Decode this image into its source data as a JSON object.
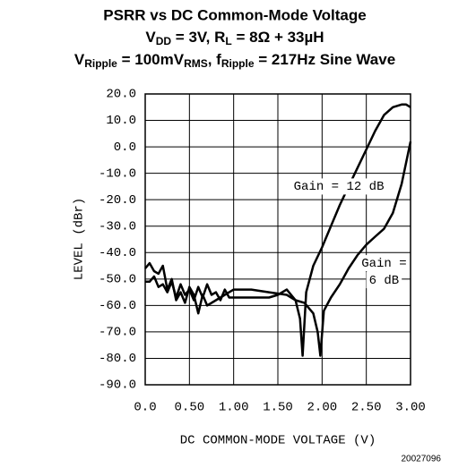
{
  "chart_data": {
    "type": "line",
    "title": "PSRR vs DC Common-Mode Voltage",
    "subtitle": [
      [
        "V",
        "DD",
        " = 3V, R",
        "L",
        " = 8Ω + 33µH"
      ],
      [
        "V",
        "Ripple",
        " = 100mV",
        "RMS",
        ", f",
        "Ripple",
        " = 217Hz Sine Wave"
      ]
    ],
    "x_label": "DC COMMON-MODE VOLTAGE (V)",
    "y_label": "LEVEL (dBr)",
    "footnote": "20027096",
    "xlim": [
      0,
      3
    ],
    "ylim": [
      -90,
      20
    ],
    "xticks": [
      {
        "value": 0,
        "label": "0.0"
      },
      {
        "value": 0.5,
        "label": "0.50"
      },
      {
        "value": 1,
        "label": "1.00"
      },
      {
        "value": 1.5,
        "label": "1.50"
      },
      {
        "value": 2,
        "label": "2.00"
      },
      {
        "value": 2.5,
        "label": "2.50"
      },
      {
        "value": 3,
        "label": "3.00"
      }
    ],
    "yticks": [
      {
        "value": 20,
        "label": "20.0"
      },
      {
        "value": 10,
        "label": "10.0"
      },
      {
        "value": 0,
        "label": "0.0"
      },
      {
        "value": -10,
        "label": "-10.0"
      },
      {
        "value": -20,
        "label": "-20.0"
      },
      {
        "value": -30,
        "label": "-30.0"
      },
      {
        "value": -40,
        "label": "-40.0"
      },
      {
        "value": -50,
        "label": "-50.0"
      },
      {
        "value": -60,
        "label": "-60.0"
      },
      {
        "value": -70,
        "label": "-70.0"
      },
      {
        "value": -80,
        "label": "-80.0"
      },
      {
        "value": -90,
        "label": "-90.0"
      }
    ],
    "grid": true,
    "annotations": [
      [
        "Gain = 12 dB"
      ],
      [
        "Gain =",
        "6 dB"
      ]
    ],
    "series": [
      {
        "color": "#000000",
        "x": [
          0,
          0.05,
          0.1,
          0.15,
          0.2,
          0.25,
          0.3,
          0.35,
          0.4,
          0.45,
          0.5,
          0.55,
          0.6,
          0.65,
          0.7,
          0.75,
          0.8,
          0.85,
          0.9,
          0.95,
          1.0,
          1.2,
          1.4,
          1.5,
          1.6,
          1.7,
          1.75,
          1.78,
          1.82,
          1.9,
          2.0,
          2.1,
          2.2,
          2.3,
          2.4,
          2.5,
          2.6,
          2.7,
          2.8,
          2.9,
          2.95,
          3.0
        ],
        "values": [
          -51,
          -51,
          -49,
          -53,
          -52,
          -55,
          -51,
          -57,
          -52,
          -56,
          -54,
          -58,
          -53,
          -57,
          -52,
          -56,
          -55,
          -58,
          -54,
          -57,
          -57,
          -57,
          -57,
          -56,
          -54,
          -58,
          -65,
          -79,
          -55,
          -45,
          -38,
          -30,
          -22,
          -15,
          -8,
          -1,
          6,
          12,
          15,
          16,
          16,
          15
        ]
      },
      {
        "color": "#000000",
        "x": [
          0,
          0.05,
          0.1,
          0.15,
          0.2,
          0.25,
          0.3,
          0.35,
          0.4,
          0.45,
          0.5,
          0.55,
          0.6,
          0.65,
          0.7,
          0.8,
          0.9,
          1.0,
          1.2,
          1.4,
          1.6,
          1.7,
          1.8,
          1.9,
          1.95,
          1.98,
          2.02,
          2.1,
          2.2,
          2.3,
          2.4,
          2.5,
          2.6,
          2.7,
          2.8,
          2.9,
          3.0
        ],
        "values": [
          -46,
          -44,
          -47,
          -48,
          -45,
          -54,
          -50,
          -58,
          -55,
          -59,
          -53,
          -56,
          -63,
          -56,
          -60,
          -58,
          -56,
          -54,
          -54,
          -55,
          -56,
          -58,
          -59,
          -63,
          -70,
          -79,
          -62,
          -57,
          -52,
          -46,
          -41,
          -37,
          -34,
          -31,
          -25,
          -14,
          2
        ]
      }
    ]
  }
}
